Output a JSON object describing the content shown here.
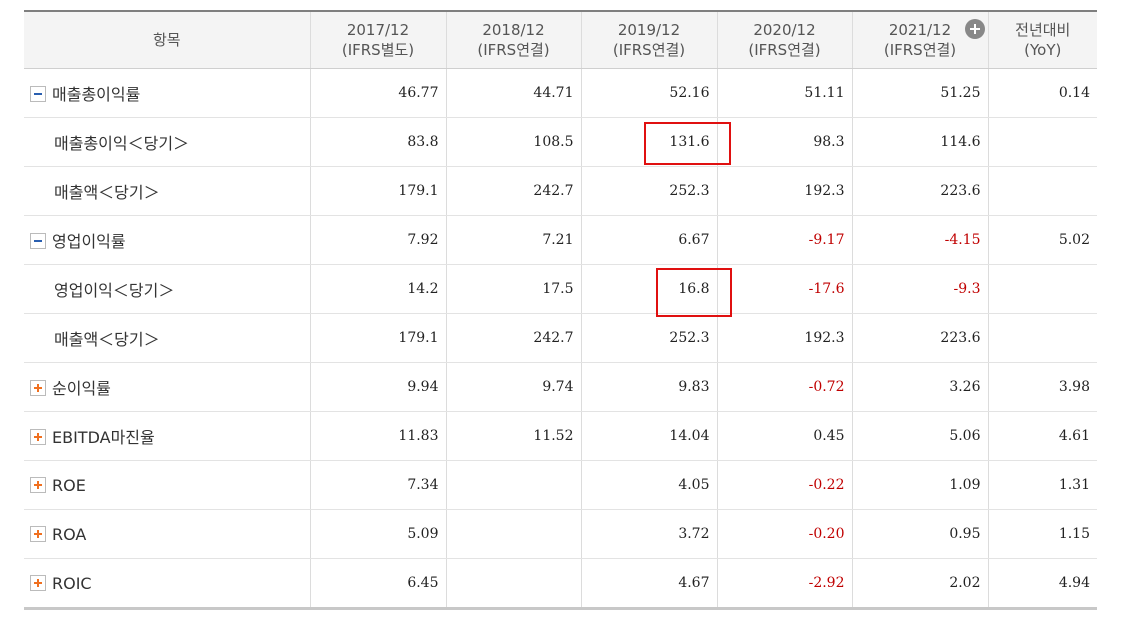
{
  "table": {
    "header": [
      [
        "항목"
      ],
      [
        "2017/12",
        "(IFRS별도)"
      ],
      [
        "2018/12",
        "(IFRS연결)"
      ],
      [
        "2019/12",
        "(IFRS연결)"
      ],
      [
        "2020/12",
        "(IFRS연결)"
      ],
      [
        "2021/12",
        "(IFRS연결)"
      ],
      [
        "전년대비",
        "(YoY)"
      ]
    ],
    "rows": [
      {
        "label": "매출총이익률",
        "values": [
          "46.77",
          "44.71",
          "52.16",
          "51.11",
          "51.25",
          "0.14"
        ]
      },
      {
        "label": "매출총이익＜당기＞",
        "values": [
          "83.8",
          "108.5",
          "131.6",
          "98.3",
          "114.6",
          null
        ]
      },
      {
        "label": "매출액＜당기＞",
        "values": [
          "179.1",
          "242.7",
          "252.3",
          "192.3",
          "223.6",
          null
        ]
      },
      {
        "label": "영업이익률",
        "values": [
          "7.92",
          "7.21",
          "6.67",
          "-9.17",
          "-4.15",
          "5.02"
        ]
      },
      {
        "label": "영업이익＜당기＞",
        "values": [
          "14.2",
          "17.5",
          "16.8",
          "-17.6",
          "-9.3",
          null
        ]
      },
      {
        "label": "매출액＜당기＞",
        "values": [
          "179.1",
          "242.7",
          "252.3",
          "192.3",
          "223.6",
          null
        ]
      },
      {
        "label": "순이익률",
        "values": [
          "9.94",
          "9.74",
          "9.83",
          "-0.72",
          "3.26",
          "3.98"
        ]
      },
      {
        "label": "EBITDA마진율",
        "values": [
          "11.83",
          "11.52",
          "14.04",
          "0.45",
          "5.06",
          "4.61"
        ]
      },
      {
        "label": "ROE",
        "values": [
          "7.34",
          null,
          "4.05",
          "-0.22",
          "1.09",
          "1.31"
        ]
      },
      {
        "label": "ROA",
        "values": [
          "5.09",
          null,
          "3.72",
          "-0.20",
          "0.95",
          "1.15"
        ]
      },
      {
        "label": "ROIC",
        "values": [
          "6.45",
          null,
          "4.67",
          "-2.92",
          "2.02",
          "4.94"
        ]
      }
    ]
  }
}
